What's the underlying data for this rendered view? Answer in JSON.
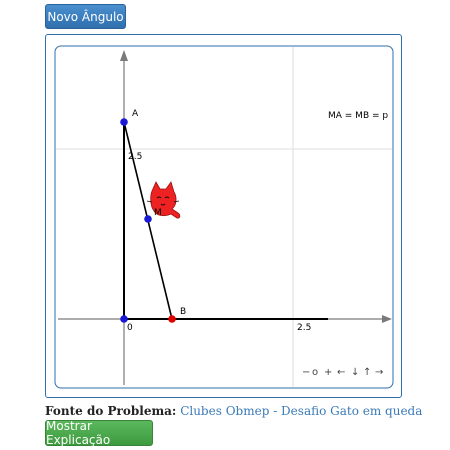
{
  "buttons": {
    "new_angle": "Novo Ângulo",
    "show_explanation": "Mostrar Explicação"
  },
  "source": {
    "label": "Fonte do Problema:",
    "link_text": "Clubes Obmep - Desafio Gato em queda"
  },
  "graph": {
    "equation": "MA = MB = p",
    "points": {
      "A": {
        "label": "A",
        "x": 0,
        "y": 3.17
      },
      "B": {
        "label": "B",
        "x": 0.75,
        "y": 0
      },
      "M": {
        "label": "M",
        "x": 0.375,
        "y": 1.585
      },
      "O": {
        "x": 0,
        "y": 0
      }
    },
    "x_axis_label_zero": "0",
    "x_axis_tick": "2.5",
    "y_axis_tick": "2.5",
    "nav_controls": [
      "−",
      "o",
      "+",
      "←",
      "↓",
      "↑",
      "→"
    ],
    "colors": {
      "point_blue": "#1a1ad6",
      "point_red": "#e00000",
      "cat": "#ee2222",
      "frame": "#2f6fae"
    },
    "cat_icon": "cat-icon"
  }
}
